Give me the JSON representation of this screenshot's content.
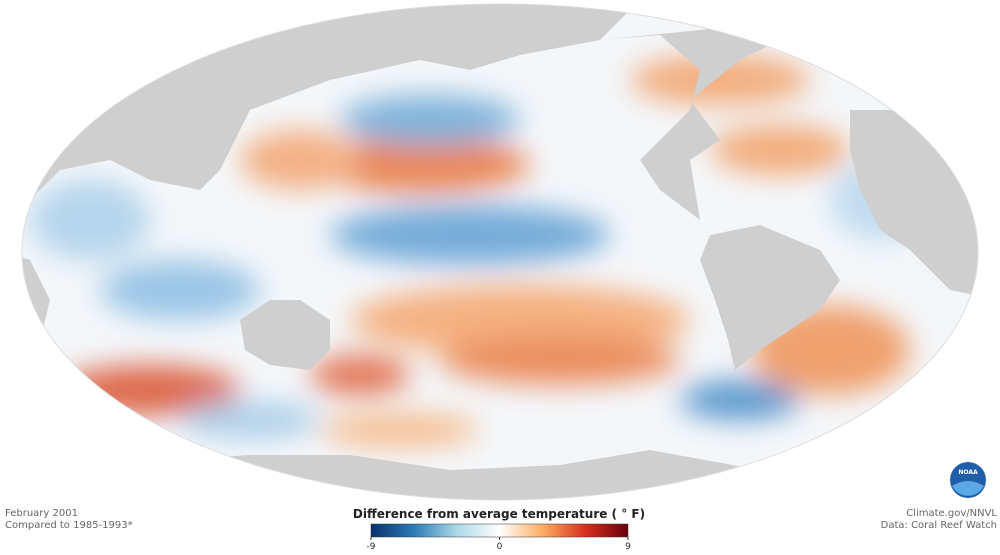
{
  "map": {
    "date": "February 2001",
    "baseline": "Compared to 1985-1993*",
    "credit": "Climate.gov/NNVL",
    "source": "Data: Coral Reef Watch",
    "logo": "NOAA"
  },
  "colorbar": {
    "title": "Difference from average temperature ( ° F)",
    "lim": [
      -9,
      9
    ],
    "ticks": [
      -9,
      0,
      9
    ],
    "colors": [
      "#08306b",
      "#2c7bb6",
      "#abd9e9",
      "#ffffff",
      "#fdae61",
      "#d7301f",
      "#67000d"
    ]
  }
}
